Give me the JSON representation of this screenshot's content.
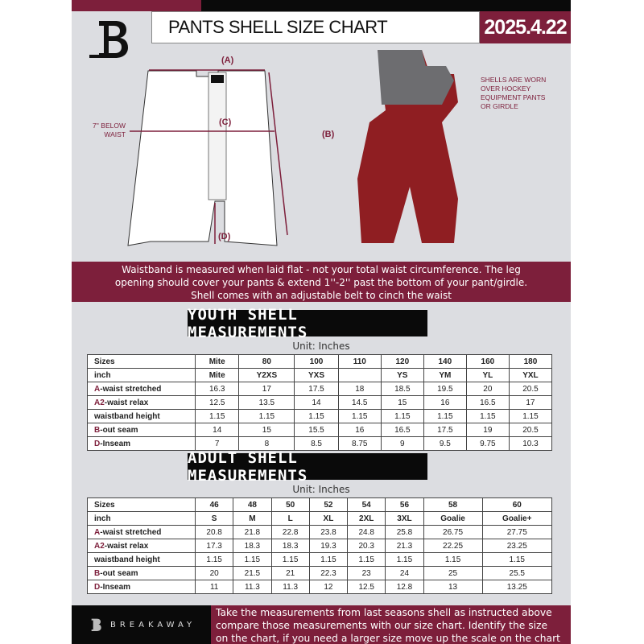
{
  "header": {
    "title": "PANTS SHELL SIZE CHART",
    "date": "2025.4.22",
    "logo_text": "B"
  },
  "diagram": {
    "label_a": "(A)",
    "label_b": "(B)",
    "label_c": "(C)",
    "label_d": "(D)",
    "below_waist": [
      "7'' BELOW",
      "WAIST"
    ],
    "note": [
      "SHELLS ARE WORN",
      "OVER HOCKEY",
      "EQUIPMENT PANTS",
      "OR GIRDLE"
    ]
  },
  "band_text": [
    "Waistband is measured when laid flat - not your total waist circumference. The leg",
    "opening should cover your pants & extend 1''-2'' past the bottom of your pant/girdle.",
    "Shell comes with an adjustable belt to cinch the waist"
  ],
  "youth": {
    "title": "YOUTH SHELL MEASUREMENTS",
    "unit": "Unit: Inches",
    "rows": [
      {
        "prefix": "",
        "label": "Sizes",
        "values": [
          "Mite",
          "80",
          "100",
          "110",
          "120",
          "140",
          "160",
          "180"
        ]
      },
      {
        "prefix": "",
        "label": "inch",
        "values": [
          "Mite",
          "Y2XS",
          "YXS",
          "",
          "YS",
          "YM",
          "YL",
          "YXL"
        ]
      },
      {
        "prefix": "A",
        "label": "-waist stretched",
        "values": [
          "16.3",
          "17",
          "17.5",
          "18",
          "18.5",
          "19.5",
          "20",
          "20.5"
        ]
      },
      {
        "prefix": "A2",
        "label": "-waist relax",
        "values": [
          "12.5",
          "13.5",
          "14",
          "14.5",
          "15",
          "16",
          "16.5",
          "17"
        ]
      },
      {
        "prefix": "",
        "label": "waistband height",
        "values": [
          "1.15",
          "1.15",
          "1.15",
          "1.15",
          "1.15",
          "1.15",
          "1.15",
          "1.15"
        ]
      },
      {
        "prefix": "B",
        "label": "-out seam",
        "values": [
          "14",
          "15",
          "15.5",
          "16",
          "16.5",
          "17.5",
          "19",
          "20.5"
        ]
      },
      {
        "prefix": "D",
        "label": "-Inseam",
        "values": [
          "7",
          "8",
          "8.5",
          "8.75",
          "9",
          "9.5",
          "9.75",
          "10.3"
        ]
      }
    ]
  },
  "adult": {
    "title": "ADULT SHELL MEASUREMENTS",
    "unit": "Unit: Inches",
    "rows": [
      {
        "prefix": "",
        "label": "Sizes",
        "values": [
          "46",
          "48",
          "50",
          "52",
          "54",
          "56",
          "58",
          "60"
        ]
      },
      {
        "prefix": "",
        "label": "inch",
        "values": [
          "S",
          "M",
          "L",
          "XL",
          "2XL",
          "3XL",
          "Goalie",
          "Goalie+"
        ]
      },
      {
        "prefix": "A",
        "label": "-waist stretched",
        "values": [
          "20.8",
          "21.8",
          "22.8",
          "23.8",
          "24.8",
          "25.8",
          "26.75",
          "27.75"
        ]
      },
      {
        "prefix": "A2",
        "label": "-waist relax",
        "values": [
          "17.3",
          "18.3",
          "18.3",
          "19.3",
          "20.3",
          "21.3",
          "22.25",
          "23.25"
        ]
      },
      {
        "prefix": "",
        "label": "waistband height",
        "values": [
          "1.15",
          "1.15",
          "1.15",
          "1.15",
          "1.15",
          "1.15",
          "1.15",
          "1.15"
        ]
      },
      {
        "prefix": "B",
        "label": "-out seam",
        "values": [
          "20",
          "21.5",
          "21",
          "22.3",
          "23",
          "24",
          "25",
          "25.5"
        ]
      },
      {
        "prefix": "D",
        "label": "-Inseam",
        "values": [
          "11",
          "11.3",
          "11.3",
          "12",
          "12.5",
          "12.8",
          "13",
          "13.25"
        ]
      }
    ]
  },
  "footer": {
    "brand": "BREAKAWAY",
    "text": [
      "Take the measurements from last seasons shell as instructed above",
      "compare those measurements  with our size chart. Identify the size",
      "on the chart, if you need a larger size move up the scale on the chart"
    ]
  },
  "colors": {
    "accent": "#7d1f3b",
    "background": "#dcdde1"
  }
}
